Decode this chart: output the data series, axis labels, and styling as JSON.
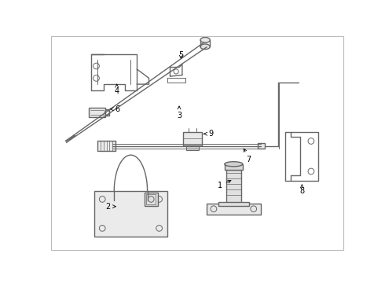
{
  "bg_color": "#ffffff",
  "line_color": "#666666",
  "fig_width": 4.9,
  "fig_height": 3.6,
  "dpi": 100
}
